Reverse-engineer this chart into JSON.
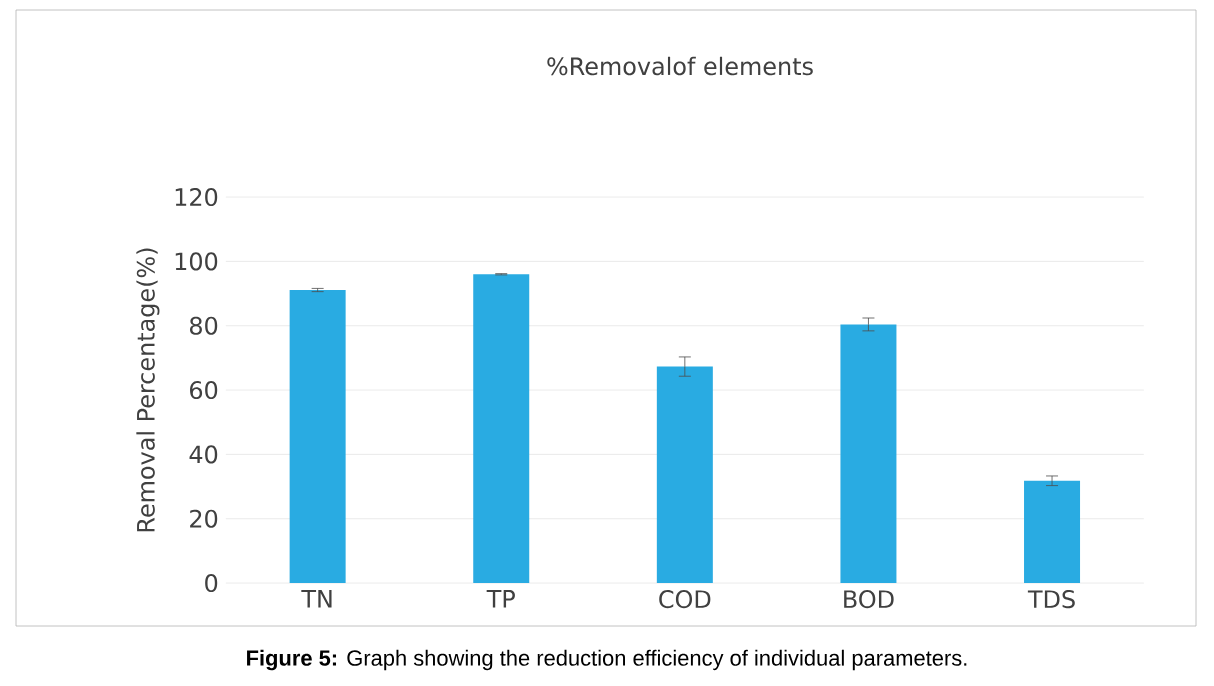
{
  "chart_data": {
    "type": "bar",
    "title": "%Removalof elements",
    "ylabel": "Removal Percentage(%)",
    "categories": [
      "TN",
      "TP",
      "COD",
      "BOD",
      "TDS"
    ],
    "values": [
      91.1,
      96,
      67.3,
      80.4,
      31.8
    ],
    "errors": [
      0.5,
      0.2,
      3,
      2,
      1.5
    ],
    "color": "#29abe2",
    "ylim": [
      0,
      120
    ],
    "yticks": [
      0,
      20,
      40,
      60,
      80,
      100,
      120
    ],
    "grid": "y",
    "annotations": [
      "**Figure 5:** Graph showing the reduction efficiency of individual parameters."
    ]
  }
}
